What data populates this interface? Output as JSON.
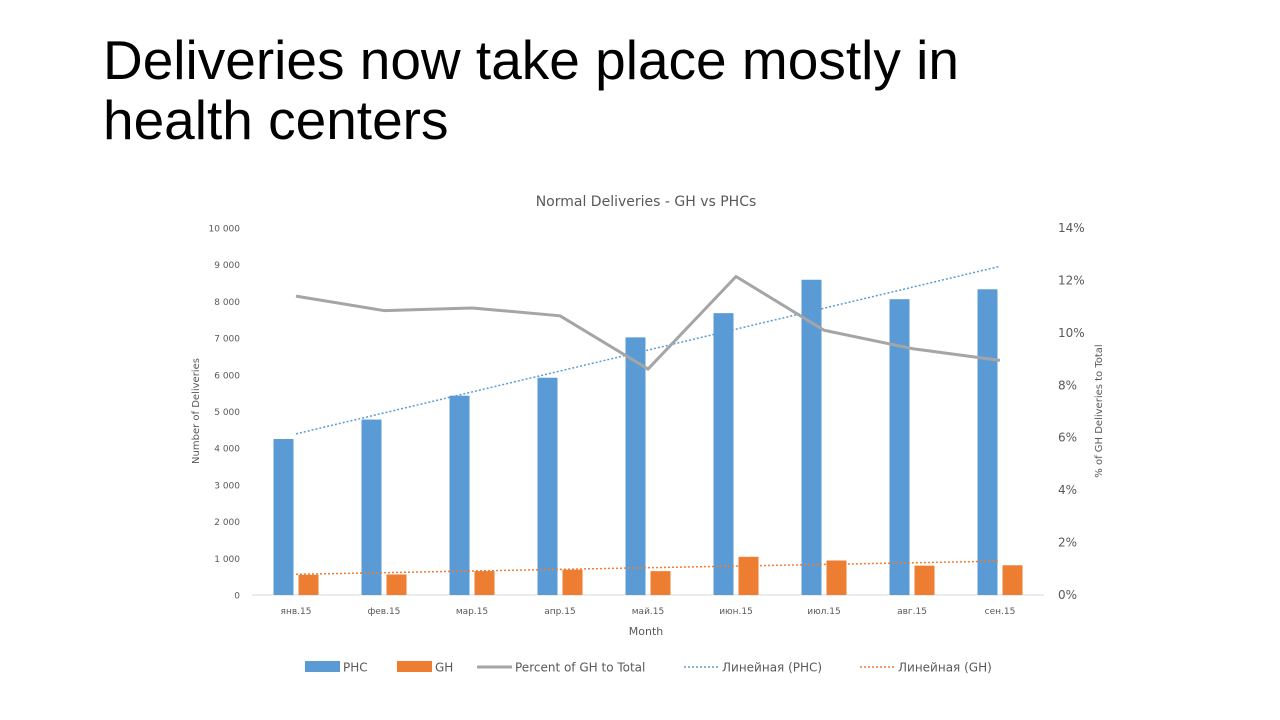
{
  "slide": {
    "title": "Deliveries now take place mostly in health centers"
  },
  "chart_data": {
    "type": "bar",
    "title": "Normal Deliveries - GH vs PHCs",
    "xlabel": "Month",
    "ylabel": "Number of Deliveries",
    "y2label": "% of GH Deliveries to Total",
    "categories": [
      "янв.15",
      "фев.15",
      "мар.15",
      "апр.15",
      "май.15",
      "июн.15",
      "июл.15",
      "авг.15",
      "сен.15"
    ],
    "ylim": [
      0,
      10000
    ],
    "y_ticks": [
      0,
      1000,
      2000,
      3000,
      4000,
      5000,
      6000,
      7000,
      8000,
      9000,
      10000
    ],
    "y_tick_labels": [
      "0",
      "1 000",
      "2 000",
      "3 000",
      "4 000",
      "5 000",
      "6 000",
      "7 000",
      "8 000",
      "9 000",
      "10 000"
    ],
    "y2lim": [
      0,
      0.14
    ],
    "y2_ticks": [
      0,
      0.02,
      0.04,
      0.06,
      0.08,
      0.1,
      0.12,
      0.14
    ],
    "y2_tick_labels": [
      "0%",
      "2%",
      "4%",
      "6%",
      "8%",
      "10%",
      "12%",
      "14%"
    ],
    "grid": false,
    "legend_position": "bottom",
    "series": [
      {
        "name": "PHC",
        "kind": "bar",
        "axis": "left",
        "color": "#5B9BD5",
        "values": [
          4250,
          4780,
          5430,
          5920,
          7020,
          7680,
          8590,
          8060,
          8330
        ]
      },
      {
        "name": "GH",
        "kind": "bar",
        "axis": "left",
        "color": "#ED7D31",
        "values": [
          550,
          560,
          650,
          690,
          650,
          1040,
          940,
          800,
          810
        ]
      },
      {
        "name": "Percent of GH to Total",
        "kind": "line",
        "axis": "right",
        "color": "#A5A5A5",
        "values": [
          0.114,
          0.1085,
          0.1095,
          0.1065,
          0.0862,
          0.1215,
          0.101,
          0.094,
          0.0895
        ]
      },
      {
        "name": "Линейная (PHC)",
        "kind": "trend",
        "of": "PHC",
        "color": "#5B9BD5"
      },
      {
        "name": "Линейная (GH)",
        "kind": "trend",
        "of": "GH",
        "color": "#ED7D31"
      }
    ]
  }
}
